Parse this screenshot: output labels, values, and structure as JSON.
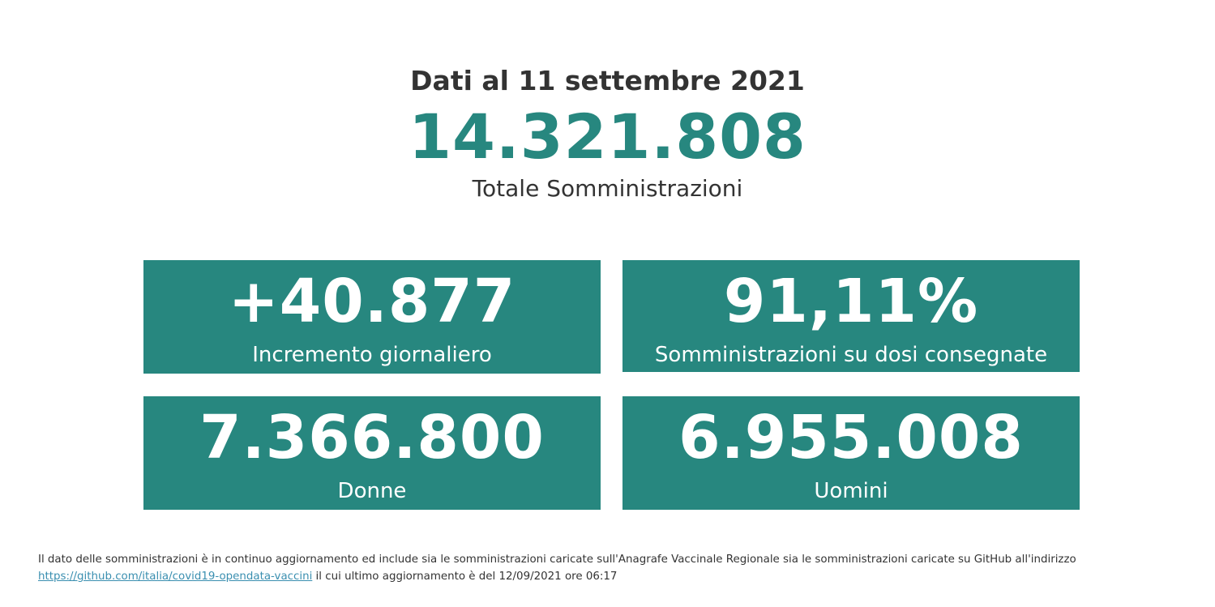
{
  "header": {
    "date": "Dati al 11 settembre 2021",
    "total_value": "14.321.808",
    "total_label": "Totale Somministrazioni"
  },
  "cards": [
    {
      "value": "+40.877",
      "label": "Incremento giornaliero"
    },
    {
      "value": "91,11%",
      "label": "Somministrazioni su dosi consegnate"
    },
    {
      "value": "7.366.800",
      "label": "Donne"
    },
    {
      "value": "6.955.008",
      "label": "Uomini"
    }
  ],
  "footer": {
    "text_before": "Il dato delle somministrazioni è in continuo aggiornamento ed include sia le somministrazioni caricate sull'Anagrafe Vaccinale Regionale sia le somministrazioni caricate su GitHub all'indirizzo",
    "link": "https://github.com/italia/covid19-opendata-vaccini",
    "text_after": " il cui ultimo aggiornamento è del 12/09/2021 ore 06:17"
  },
  "colors": {
    "accent": "#27877f",
    "text": "#333333",
    "link": "#3a8fb0"
  }
}
